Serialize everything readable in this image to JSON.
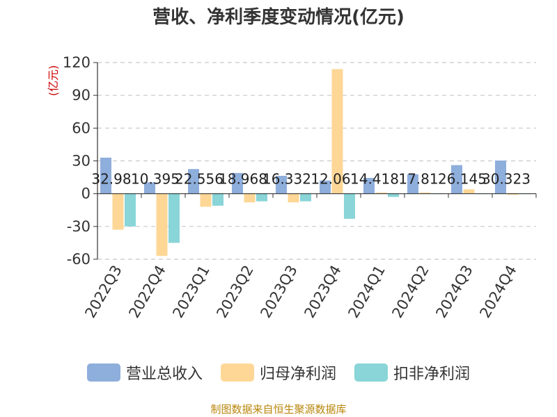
{
  "chart_data": {
    "type": "bar",
    "title": "营收、净利季度变动情况(亿元)",
    "ylabel": "(亿元)",
    "ylim": [
      -60,
      120
    ],
    "yticks": [
      120,
      90,
      60,
      30,
      0,
      -30,
      -60
    ],
    "grid": true,
    "legend_position": "bottom",
    "categories": [
      "2022Q3",
      "2022Q4",
      "2023Q1",
      "2023Q2",
      "2023Q3",
      "2023Q4",
      "2024Q1",
      "2024Q2",
      "2024Q3",
      "2024Q4"
    ],
    "series": [
      {
        "name": "营业总收入",
        "color": "#8eaedc",
        "values": [
          32.98,
          10.395,
          22.556,
          18.968,
          16.332,
          12.06,
          14.418,
          17.81,
          26.145,
          30.323
        ],
        "labels": [
          "32.98",
          "10.395",
          "22.556",
          "18.968",
          "16.332",
          "12.06",
          "14.418",
          "17.81",
          "26.145",
          "30.323"
        ]
      },
      {
        "name": "归母净利润",
        "color": "#fed796",
        "values": [
          -33,
          -57,
          -12,
          -8,
          -8,
          114,
          1,
          1,
          4,
          -1
        ]
      },
      {
        "name": "扣非净利润",
        "color": "#89d5d8",
        "values": [
          -30,
          -45,
          -11,
          -7,
          -7,
          -23,
          -3,
          0.3,
          0.3,
          0.3
        ]
      }
    ]
  },
  "source": "制图数据来自恒生聚源数据库"
}
